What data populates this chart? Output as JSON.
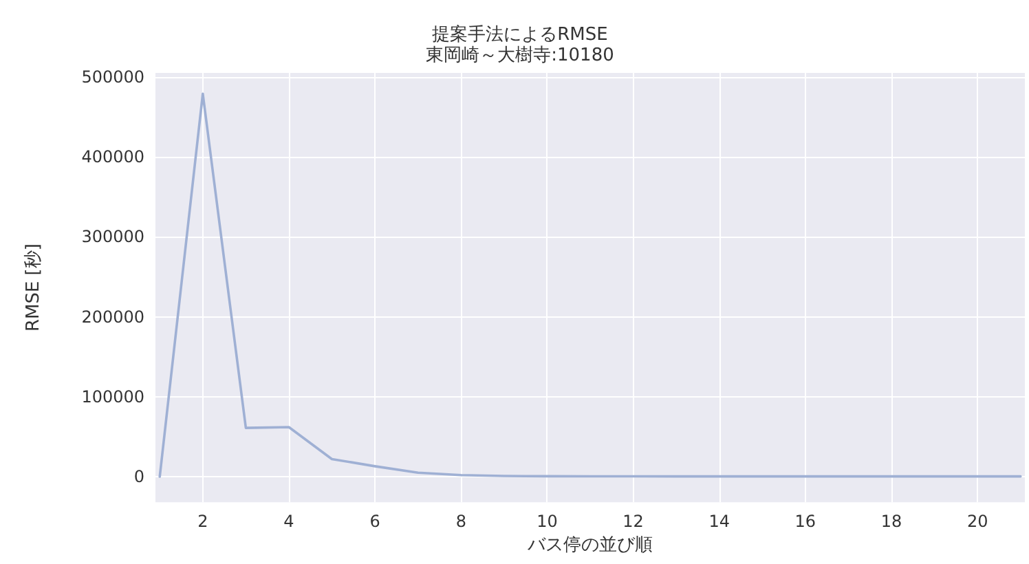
{
  "chart_data": {
    "type": "line",
    "title": "提案手法によるRMSE",
    "subtitle": "東岡崎～大樹寺:10180",
    "xlabel": "バス停の並び順",
    "ylabel": "RMSE [秒]",
    "x": [
      1,
      2,
      3,
      4,
      5,
      6,
      7,
      8,
      9,
      10,
      11,
      12,
      13,
      14,
      15,
      16,
      17,
      18,
      19,
      20,
      21
    ],
    "series": [
      {
        "color": "#9fb0d4",
        "values": [
          0,
          479000,
          61000,
          62000,
          22000,
          13000,
          5000,
          2000,
          800,
          500,
          400,
          400,
          300,
          300,
          300,
          300,
          300,
          300,
          300,
          300,
          300
        ]
      }
    ],
    "xlim": [
      0.9,
      21.1
    ],
    "xticks": [
      2,
      4,
      6,
      8,
      10,
      12,
      14,
      16,
      18,
      20
    ],
    "ylim": [
      -32000,
      505000
    ],
    "yticks": [
      0,
      100000,
      200000,
      300000,
      400000,
      500000
    ],
    "grid": true,
    "marker": "none",
    "line_style": "solid"
  }
}
